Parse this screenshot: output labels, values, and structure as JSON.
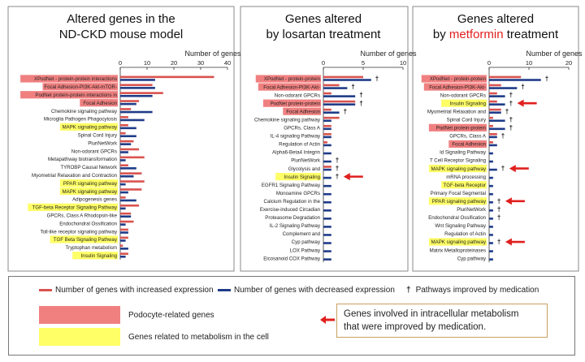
{
  "titles": {
    "p1": [
      "Altered genes in the",
      "ND-CKD mouse model"
    ],
    "p2": [
      "Genes altered",
      "by losartan treatment"
    ],
    "p3_line1": "Genes altered",
    "p3_by": "by ",
    "p3_highlight": "metformin",
    "p3_tail": " treatment"
  },
  "colors": {
    "increase": "#d9534f",
    "decrease": "#1f3c88",
    "podocyte": "#f08080",
    "metabolism": "#ffff66",
    "arrow": "#e0201e"
  },
  "chart_data": [
    {
      "type": "bar",
      "orientation": "horizontal",
      "title": "Altered genes in the ND-CKD mouse model",
      "xlabel": "Number of genes",
      "xlim": [
        0,
        40
      ],
      "xticks": [
        0,
        10,
        20,
        30,
        40
      ],
      "categories": [
        "XPodNet - protein-protein interactions",
        "Focal Adhesion-PI3K-Akt-mTOR-",
        "PodNet protein-protein interactions in",
        "Focal Adhesion",
        "Chemokine signaling pathway",
        "Microglia Pathogen Phagocytosis",
        "MAPK signaling pathway",
        "Spinal Cord Injury",
        "PluriNetWork",
        "Non-odorant GPCRs",
        "Metapathway biotransformation",
        "TYROBP Causal Network",
        "Myometrial Relaxation and Contraction",
        "PPAR signaling pathway",
        "MAPK signaling pathway",
        "Adipogenesis genes",
        "TGF-beta Receptor Signaling Pathway",
        "GPCRs, Class A Rhodopsin-like",
        "Endochondral Ossification",
        "Toll-like receptor signaling pathway",
        "TGF Beta Signaling Pathway",
        "Tryptophan metabolism",
        "Insulin Signaling"
      ],
      "highlight": [
        "pod",
        "pod",
        "pod",
        "pod",
        "",
        "",
        "met",
        "",
        "",
        "",
        "",
        "",
        "",
        "met",
        "met",
        "",
        "met",
        "",
        "",
        "",
        "met",
        "",
        "met"
      ],
      "series": [
        {
          "name": "Number of genes with increased expression",
          "values": [
            35,
            12,
            16,
            7,
            4,
            3,
            3,
            2,
            5,
            7,
            9,
            3,
            8,
            9,
            8,
            2,
            7,
            4,
            5,
            3,
            3,
            1,
            3
          ]
        },
        {
          "name": "Number of genes with decreased expression",
          "values": [
            13,
            13,
            12,
            6,
            12,
            9,
            6,
            6,
            4,
            3,
            2,
            6,
            5,
            2,
            3,
            6,
            2,
            4,
            2,
            3,
            2,
            3,
            2
          ]
        }
      ]
    },
    {
      "type": "bar",
      "orientation": "horizontal",
      "title": "Genes altered by losartan treatment",
      "xlabel": "Number of genes",
      "xlim": [
        0,
        10
      ],
      "xticks": [
        0,
        5,
        10
      ],
      "categories": [
        "XPodNet - protein-protein",
        "Focal Adhesion-PI3K-Akt-",
        "Non-odorant GPCRs",
        "PodNet protein-protein",
        "Focal Adhesion",
        "Chemokine signaling pathway",
        "GPCRs, Class A",
        "IL-4 signaling Pathway",
        "Regulation of Actin",
        "Alpha6-Beta4 Integrin",
        "PluriNetWork",
        "Glycolysis and",
        "Insulin Signaling",
        "EGFR1 Signaling Pathway",
        "Monoamine GPCRs",
        "Calcium Regulation in the",
        "Exercise-induced Circadian",
        "Proteasome Degradation",
        "IL-2 Signaling Pathway",
        "Complement and",
        "Cyp pathway",
        "LOX Pathway",
        "Eicosanoid COX Pathway"
      ],
      "highlight": [
        "pod",
        "pod",
        "",
        "pod",
        "pod",
        "",
        "",
        "",
        "",
        "",
        "",
        "",
        "met",
        "",
        "",
        "",
        "",
        "",
        "",
        "",
        "",
        "",
        ""
      ],
      "improved": [
        true,
        true,
        true,
        true,
        true,
        false,
        false,
        false,
        false,
        false,
        true,
        true,
        true,
        false,
        false,
        false,
        false,
        false,
        false,
        false,
        false,
        false,
        false
      ],
      "arrow": [
        false,
        false,
        false,
        false,
        false,
        false,
        false,
        false,
        false,
        false,
        false,
        false,
        true,
        false,
        false,
        false,
        false,
        false,
        false,
        false,
        false,
        false,
        false
      ],
      "series": [
        {
          "name": "Number of genes with increased expression",
          "values": [
            5,
            2,
            1,
            4,
            1,
            2,
            1,
            1,
            0.5,
            0,
            0,
            1,
            0,
            0,
            0,
            0,
            0,
            0,
            0,
            0,
            0,
            0,
            0
          ]
        },
        {
          "name": "Number of genes with decreased expression",
          "values": [
            6,
            3,
            4,
            4,
            2,
            1,
            1,
            1,
            1,
            1,
            1,
            1,
            1,
            1,
            1,
            1,
            1,
            1,
            1,
            1,
            1,
            1,
            1
          ]
        }
      ]
    },
    {
      "type": "bar",
      "orientation": "horizontal",
      "title": "Genes altered by metformin treatment",
      "xlabel": "Number of genes",
      "xlim": [
        0,
        20
      ],
      "xticks": [
        0,
        10,
        20
      ],
      "categories": [
        "XPodNet - protein-protein",
        "Focal Adhesion-PI3K-Akt-",
        "Non-odorant GPCRs",
        "Insulin Signaling",
        "Myometrial Relaxation and",
        "Spinal Cord Injury",
        "PodNet protein-protein",
        "GPCRs, Class A",
        "Focal Adhesion",
        "Id Signaling Pathway",
        "T Cell Receptor Signaling",
        "MAPK signaling pathway",
        "mRNA processing",
        "TGF-beta Receptor",
        "Primary Focal Segmental",
        "PPAR signaling pathway",
        "PluriNetWork",
        "Endochondral Ossification",
        "Wnt Signaling Pathway",
        "Regulation of Actin",
        "MAPK signaling pathway",
        "Matrix Metalloproteinases",
        "Cyp pathway"
      ],
      "highlight": [
        "pod",
        "pod",
        "",
        "met",
        "",
        "",
        "pod",
        "",
        "pod",
        "",
        "",
        "met",
        "",
        "met",
        "",
        "met",
        "",
        "",
        "",
        "",
        "met",
        "",
        ""
      ],
      "improved": [
        true,
        true,
        true,
        true,
        true,
        true,
        true,
        true,
        false,
        false,
        false,
        true,
        false,
        false,
        false,
        true,
        true,
        true,
        false,
        false,
        true,
        false,
        false
      ],
      "arrow": [
        false,
        false,
        false,
        true,
        false,
        false,
        false,
        false,
        false,
        false,
        false,
        true,
        false,
        false,
        false,
        true,
        false,
        false,
        false,
        false,
        true,
        false,
        false
      ],
      "series": [
        {
          "name": "Number of genes with increased expression",
          "values": [
            8,
            3,
            2,
            2,
            3,
            1,
            1,
            2,
            1,
            0,
            0,
            0,
            0,
            0,
            0,
            0,
            0,
            0,
            0,
            0,
            0,
            0,
            0
          ]
        },
        {
          "name": "Number of genes with decreased expression",
          "values": [
            13,
            7,
            4,
            4,
            3,
            4,
            4,
            2,
            2,
            1,
            1,
            2,
            1,
            1,
            1,
            1,
            1,
            1,
            1,
            1,
            1,
            1,
            1
          ]
        }
      ]
    }
  ],
  "legend": {
    "increase_label": "Number of genes with increased expression",
    "decrease_label": "Number of genes with decreased expression",
    "improved_symbol": "†",
    "improved_label": "Pathways improved by medication",
    "podocyte_label": "Podocyte-related genes",
    "metabolism_label": "Genes related to metabolism in the cell",
    "note_line1": "Genes involved in intracellular metabolism",
    "note_line2": "that were improved by medication."
  }
}
